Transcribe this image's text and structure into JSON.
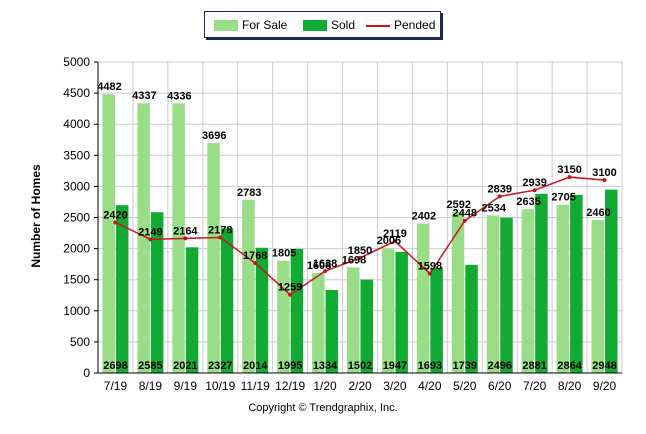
{
  "legend": {
    "for_sale": "For Sale",
    "sold": "Sold",
    "pended": "Pended"
  },
  "copyright": "Copyright © Trendgraphix, Inc.",
  "colors": {
    "for_sale": "#99dd88",
    "sold": "#11aa33",
    "pended": "#c8141e",
    "grid": "#cccccc"
  },
  "chart_data": {
    "type": "bar",
    "ylabel": "Number of Homes",
    "xlabel": "",
    "ylim": [
      0,
      5000
    ],
    "yticks": [
      0,
      500,
      1000,
      1500,
      2000,
      2500,
      3000,
      3500,
      4000,
      4500,
      5000
    ],
    "grid": true,
    "legend_position": "top-center",
    "categories": [
      "7/19",
      "8/19",
      "9/19",
      "10/19",
      "11/19",
      "12/19",
      "1/20",
      "2/20",
      "3/20",
      "4/20",
      "5/20",
      "6/20",
      "7/20",
      "8/20",
      "9/20"
    ],
    "series": [
      {
        "name": "For Sale",
        "kind": "bar",
        "values": [
          4482,
          4337,
          4336,
          3696,
          2783,
          1805,
          1608,
          1698,
          2006,
          2402,
          2592,
          2534,
          2635,
          2705,
          2460
        ]
      },
      {
        "name": "Sold",
        "kind": "bar",
        "values": [
          2698,
          2585,
          2021,
          2327,
          2014,
          1995,
          1334,
          1502,
          1947,
          1693,
          1739,
          2496,
          2881,
          2864,
          2948
        ]
      },
      {
        "name": "Pended",
        "kind": "line",
        "values": [
          2420,
          2149,
          2164,
          2178,
          1768,
          1259,
          1638,
          1850,
          2119,
          1598,
          2448,
          2839,
          2939,
          3150,
          3100
        ]
      }
    ]
  }
}
